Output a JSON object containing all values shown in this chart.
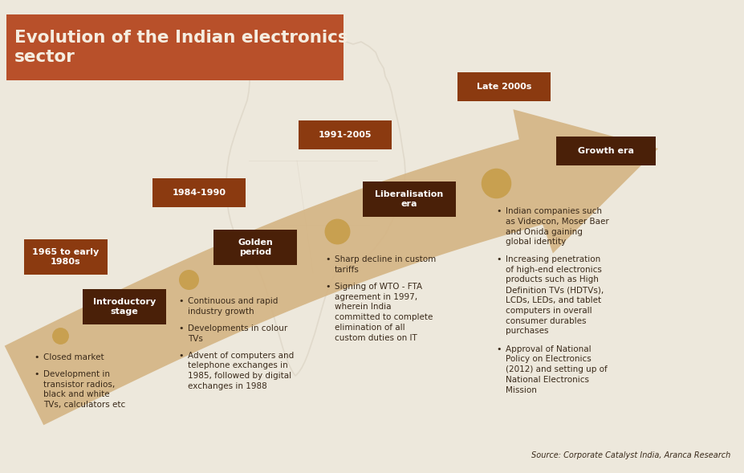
{
  "title": "Evolution of the Indian electronics\nsector",
  "title_bg_color": "#b8502a",
  "title_text_color": "#f5ede0",
  "bg_color": "#ede8dc",
  "arrow_color": "#d4b483",
  "dark_brown": "#4a2008",
  "medium_brown": "#8b3a10",
  "dot_color": "#c8a050",
  "text_color": "#3a2a1a",
  "source_text": "Source: Corporate Catalyst India, Aranca Research",
  "map_color": "#d8d0c0",
  "period1_date": "1965 to early\n1980s",
  "period1_stage": "Introductory\nstage",
  "period1_bullets": [
    "Closed market",
    "Development in\ntransistor radios,\nblack and white\nTVs, calculators etc"
  ],
  "period2_date": "1984-1990",
  "period2_stage": "Golden\nperiod",
  "period2_bullets": [
    "Continuous and rapid\nindustry growth",
    "Developments in colour\nTVs",
    "Advent of computers and\ntelephone exchanges in\n1985, followed by digital\nexchanges in 1988"
  ],
  "period3_date": "1991-2005",
  "period3_stage": "Liberalisation\nera",
  "period3_bullets": [
    "Sharp decline in custom\ntariffs",
    "Signing of WTO - FTA\nagreement in 1997,\nwherein India\ncommitted to complete\nelimination of all\ncustom duties on IT"
  ],
  "period4_date": "Late 2000s",
  "period4_stage": "Growth era",
  "period4_bullets": [
    "Indian companies such\nas Videocon, Moser Baer\nand Onida gaining\nglobal identity",
    "Increasing penetration\nof high-end electronics\nproducts such as High\nDefinition TVs (HDTVs),\nLCDs, LEDs, and tablet\ncomputers in overall\nconsumer durables\npurchases",
    "Approval of National\nPolicy on Electronics\n(2012) and setting up of\nNational Electronics\nMission"
  ]
}
